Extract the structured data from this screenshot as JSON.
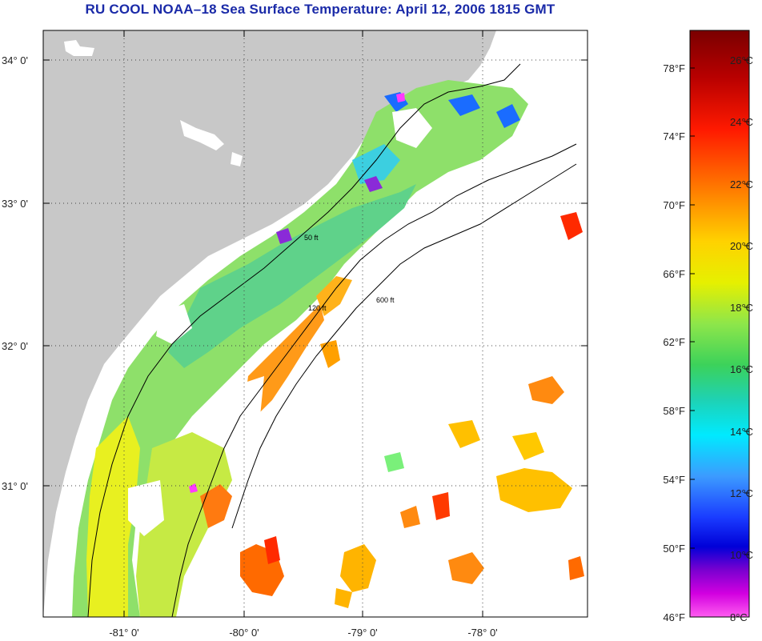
{
  "title": "RU COOL  NOAA–18  Sea Surface Temperature:  April 12, 2006 1815 GMT",
  "map": {
    "lat_labels": [
      "34° 0'",
      "33° 0'",
      "32° 0'",
      "31° 0'"
    ],
    "lon_labels": [
      "-81° 0'",
      "-80° 0'",
      "-79° 0'",
      "-78° 0'"
    ],
    "contour_labels": [
      "50 ft",
      "120 ft",
      "600 ft"
    ],
    "land_color": "#c8c8c8",
    "ocean_nodata_color": "#ffffff"
  },
  "colorbar": {
    "fahrenheit_labels": [
      "78°F",
      "74°F",
      "70°F",
      "66°F",
      "62°F",
      "58°F",
      "54°F",
      "50°F",
      "46°F"
    ],
    "celsius_labels": [
      "26°C",
      "24°C",
      "22°C",
      "20°C",
      "18°C",
      "16°C",
      "14°C",
      "12°C",
      "10°C",
      "8°C"
    ],
    "colors": [
      "#7a0000",
      "#c40000",
      "#ff1a00",
      "#ff7a00",
      "#ffc800",
      "#e6f000",
      "#9ae64a",
      "#3cd25a",
      "#1ed2b4",
      "#00e6ff",
      "#3c9bff",
      "#1a3cff",
      "#0000c8",
      "#6400c8",
      "#c800dc",
      "#ff3cff"
    ]
  }
}
